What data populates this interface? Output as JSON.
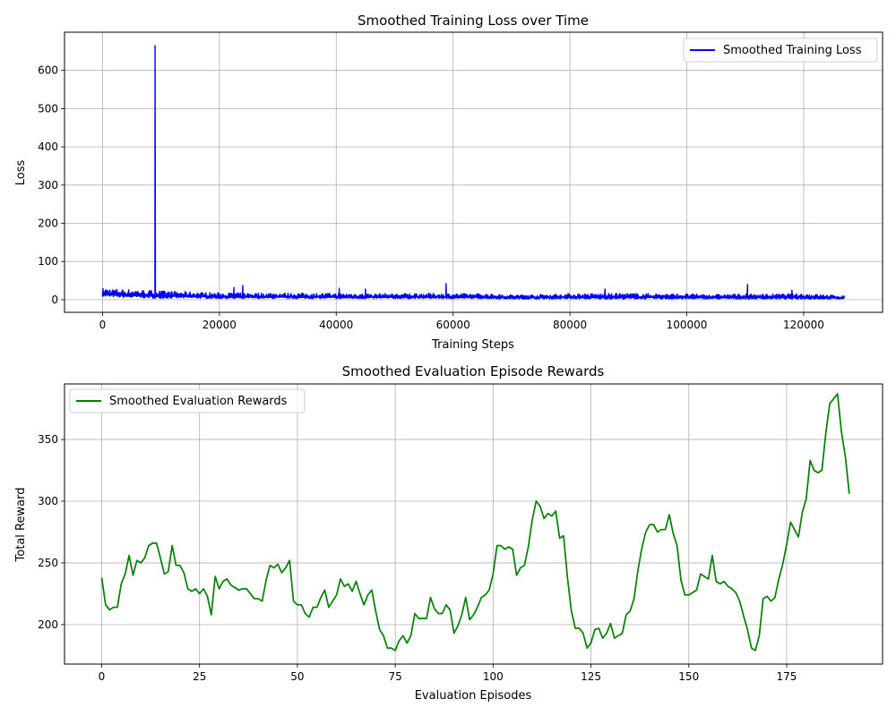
{
  "chart_data": [
    {
      "type": "line",
      "title": "Smoothed Training Loss over Time",
      "xlabel": "Training Steps",
      "ylabel": "Loss",
      "xlim": [
        -6500,
        133500
      ],
      "ylim": [
        -33,
        700
      ],
      "xticks": [
        0,
        20000,
        40000,
        60000,
        80000,
        100000,
        120000
      ],
      "xtick_labels": [
        "0",
        "20000",
        "40000",
        "60000",
        "80000",
        "100000",
        "120000"
      ],
      "yticks": [
        0,
        100,
        200,
        300,
        400,
        500,
        600
      ],
      "ytick_labels": [
        "0",
        "100",
        "200",
        "300",
        "400",
        "500",
        "600"
      ],
      "grid": true,
      "legend_position": "upper right",
      "series": [
        {
          "name": "Smoothed Training Loss",
          "color": "#0000ff",
          "x_range": [
            0,
            127000
          ],
          "baseline_band": [
            [
              0,
              8,
              30
            ],
            [
              3000,
              6,
              28
            ],
            [
              6000,
              5,
              26
            ],
            [
              9000,
              4,
              24
            ],
            [
              12000,
              4,
              22
            ],
            [
              16000,
              4,
              20
            ],
            [
              20000,
              3,
              18
            ],
            [
              25000,
              3,
              18
            ],
            [
              30000,
              3,
              18
            ],
            [
              35000,
              3,
              17
            ],
            [
              40000,
              3,
              17
            ],
            [
              45000,
              3,
              16
            ],
            [
              50000,
              3,
              16
            ],
            [
              55000,
              3,
              17
            ],
            [
              60000,
              3,
              16
            ],
            [
              65000,
              3,
              16
            ],
            [
              70000,
              2,
              13
            ],
            [
              75000,
              2,
              14
            ],
            [
              80000,
              2,
              16
            ],
            [
              85000,
              2,
              16
            ],
            [
              90000,
              2,
              17
            ],
            [
              95000,
              2,
              16
            ],
            [
              100000,
              2,
              15
            ],
            [
              105000,
              2,
              14
            ],
            [
              110000,
              2,
              15
            ],
            [
              115000,
              2,
              15
            ],
            [
              120000,
              2,
              16
            ],
            [
              125000,
              2,
              12
            ],
            [
              127000,
              2,
              10
            ]
          ],
          "spikes": [
            [
              9000,
              665
            ],
            [
              22500,
              32
            ],
            [
              24000,
              37
            ],
            [
              40500,
              30
            ],
            [
              45000,
              28
            ],
            [
              58800,
              42
            ],
            [
              86000,
              28
            ],
            [
              110400,
              40
            ],
            [
              118000,
              25
            ]
          ]
        }
      ]
    },
    {
      "type": "line",
      "title": "Smoothed Evaluation Episode Rewards",
      "xlabel": "Evaluation Episodes",
      "ylabel": "Total Reward",
      "xlim": [
        -9.5,
        199.5
      ],
      "ylim": [
        168,
        395
      ],
      "xticks": [
        0,
        25,
        50,
        75,
        100,
        125,
        150,
        175
      ],
      "xtick_labels": [
        "0",
        "25",
        "50",
        "75",
        "100",
        "125",
        "150",
        "175"
      ],
      "yticks": [
        200,
        250,
        300,
        350
      ],
      "ytick_labels": [
        "200",
        "250",
        "300",
        "350"
      ],
      "grid": true,
      "legend_position": "upper left",
      "series": [
        {
          "name": "Smoothed Evaluation Rewards",
          "color": "#008000",
          "x_start": 0,
          "values": [
            238,
            216,
            212,
            214,
            214,
            233,
            241,
            256,
            240,
            252,
            250,
            254,
            264,
            266,
            266,
            254,
            241,
            243,
            264,
            248,
            248,
            242,
            229,
            227,
            229,
            225,
            229,
            223,
            208,
            239,
            229,
            235,
            237,
            232,
            230,
            228,
            229,
            229,
            225,
            221,
            221,
            219,
            236,
            248,
            246,
            249,
            242,
            246,
            252,
            219,
            216,
            216,
            209,
            206,
            214,
            214,
            222,
            228,
            214,
            219,
            224,
            237,
            231,
            233,
            227,
            235,
            225,
            216,
            224,
            228,
            211,
            196,
            191,
            181,
            181,
            179,
            187,
            191,
            185,
            191,
            209,
            205,
            205,
            205,
            222,
            213,
            209,
            209,
            216,
            212,
            193,
            199,
            208,
            222,
            204,
            208,
            214,
            222,
            224,
            228,
            241,
            264,
            264,
            261,
            263,
            261,
            240,
            246,
            248,
            263,
            285,
            300,
            296,
            286,
            290,
            288,
            292,
            270,
            272,
            238,
            211,
            197,
            197,
            193,
            181,
            185,
            196,
            197,
            189,
            193,
            201,
            189,
            191,
            193,
            208,
            211,
            221,
            244,
            262,
            275,
            281,
            281,
            275,
            277,
            277,
            289,
            274,
            264,
            236,
            224,
            224,
            226,
            228,
            241,
            239,
            237,
            256,
            235,
            233,
            235,
            231,
            229,
            226,
            219,
            207,
            196,
            181,
            179,
            191,
            221,
            223,
            219,
            222,
            237,
            249,
            265,
            283,
            277,
            271,
            291,
            302,
            333,
            325,
            323,
            325,
            355,
            379,
            383,
            387,
            356,
            336,
            306
          ]
        }
      ]
    }
  ]
}
